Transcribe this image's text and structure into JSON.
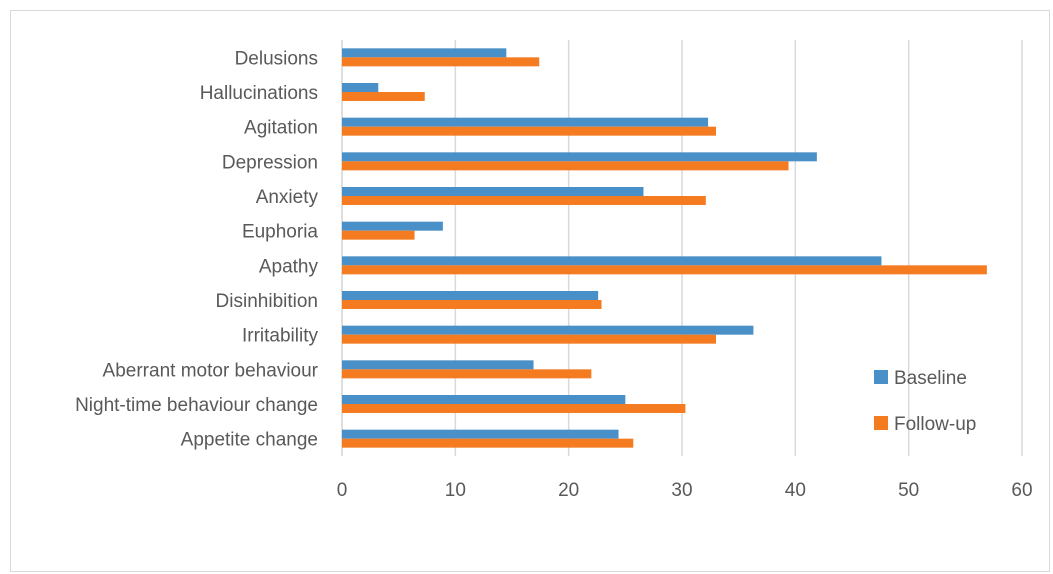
{
  "chart_data": {
    "type": "bar",
    "orientation": "horizontal",
    "categories": [
      "Delusions",
      "Hallucinations",
      "Agitation",
      "Depression",
      "Anxiety",
      "Euphoria",
      "Apathy",
      "Disinhibition",
      "Irritability",
      "Aberrant motor behaviour",
      "Night-time behaviour change",
      "Appetite change"
    ],
    "series": [
      {
        "name": "Baseline",
        "color": "#4a90c8",
        "values": [
          14.5,
          3.2,
          32.3,
          41.9,
          26.6,
          8.9,
          47.6,
          22.6,
          36.3,
          16.9,
          25.0,
          24.4
        ]
      },
      {
        "name": "Follow-up",
        "color": "#f47b20",
        "values": [
          17.4,
          7.3,
          33.0,
          39.4,
          32.1,
          6.4,
          56.9,
          22.9,
          33.0,
          22.0,
          30.3,
          25.7
        ]
      }
    ],
    "xlim": [
      0,
      60
    ],
    "xticks": [
      0,
      10,
      20,
      30,
      40,
      50,
      60
    ],
    "grid": true,
    "legend": "right",
    "title": "",
    "xlabel": "",
    "ylabel": ""
  }
}
